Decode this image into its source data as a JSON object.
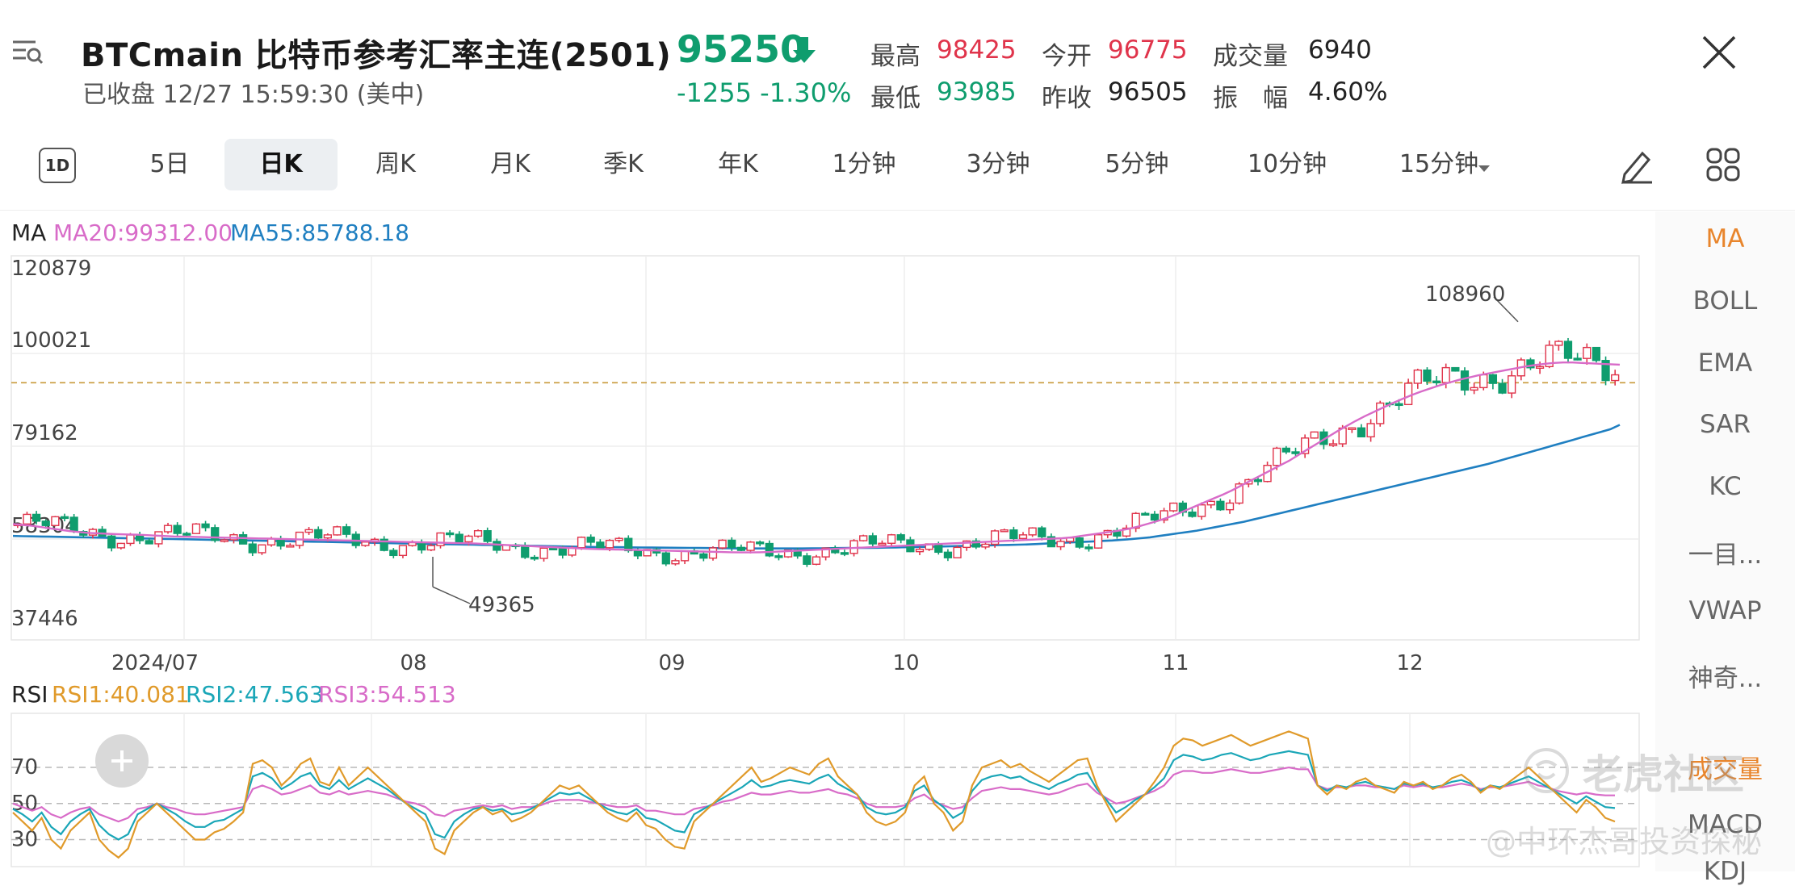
{
  "header": {
    "symbol_title": "BTCmain  比特币参考汇率主连(2501)",
    "market_status": "已收盘 12/27 15:59:30 (美中)",
    "last_price": "95250",
    "price_change": "-1255  -1.30%",
    "stats": {
      "high_label": "最高",
      "high_value": "98425",
      "open_label": "今开",
      "open_value": "96775",
      "volume_label": "成交量",
      "volume_value": "6940",
      "low_label": "最低",
      "low_value": "93985",
      "prev_close_label": "昨收",
      "prev_close_value": "96505",
      "amplitude_label": "振　幅",
      "amplitude_value": "4.60%"
    },
    "colors": {
      "up": "#e0344b",
      "down": "#0f9d6e"
    }
  },
  "tabs": {
    "icon_label": "1D",
    "items": [
      "5日",
      "日K",
      "周K",
      "月K",
      "季K",
      "年K",
      "1分钟",
      "3分钟",
      "5分钟",
      "10分钟",
      "15分钟"
    ],
    "active": "日K"
  },
  "side_panel": {
    "items": [
      "MA",
      "BOLL",
      "EMA",
      "SAR",
      "KC",
      "一目...",
      "VWAP",
      "神奇...",
      "成交量",
      "MACD",
      "KDJ"
    ],
    "active": "MA"
  },
  "main_legend": {
    "label": "MA",
    "ma20": "MA20:99312.00",
    "ma55": "MA55:85788.18",
    "ma20_color": "#d86bc8",
    "ma55_color": "#1f7fc1"
  },
  "rsi_legend": {
    "label": "RSI",
    "rsi1": "RSI1:40.081",
    "rsi2": "RSI2:47.563",
    "rsi3": "RSI3:54.513",
    "rsi1_color": "#e09a2a",
    "rsi2_color": "#1aa6b7",
    "rsi3_color": "#d86bc8"
  },
  "watermark": {
    "brand": "老虎社区",
    "author": "@中环杰哥投资探秘"
  },
  "chart_data": [
    {
      "type": "candlestick",
      "y_ticks": [
        "120879",
        "100021",
        "79162",
        "58304",
        "37446"
      ],
      "ylim": [
        37446,
        120879
      ],
      "x_ticks": [
        "2024/07",
        "08",
        "09",
        "10",
        "11",
        "12"
      ],
      "annotations": [
        {
          "text": "108960",
          "value": 108960
        },
        {
          "text": "49365",
          "value": 49365
        }
      ],
      "reference_price": 95250,
      "ma20": [
        63500,
        63300,
        63100,
        62800,
        62500,
        62200,
        61900,
        61700,
        61500,
        61400,
        61300,
        61200,
        61150,
        61100,
        61000,
        60900,
        60800,
        60700,
        60650,
        60600,
        60550,
        60500,
        60450,
        60400,
        60350,
        60300,
        60250,
        60200,
        60150,
        60100,
        60050,
        60000,
        59950,
        59900,
        59850,
        59800,
        59750,
        59700,
        59650,
        59600,
        59550,
        59500,
        59450,
        59400,
        59350,
        59300,
        59250,
        59200,
        59150,
        59100,
        59000,
        58900,
        58800,
        58700,
        58600,
        58500,
        58400,
        58300,
        58200,
        58100,
        58000,
        57900,
        57850,
        57800,
        57750,
        57700,
        57650,
        57600,
        57550,
        57500,
        57450,
        57400,
        57350,
        57300,
        57250,
        57200,
        57150,
        57100,
        57100,
        57150,
        57200,
        57300,
        57400,
        57500,
        57600,
        57700,
        57800,
        57900,
        58000,
        58100,
        58200,
        58300,
        58400,
        58500,
        58600,
        58700,
        58800,
        58900,
        59000,
        59100,
        59200,
        59300,
        59400,
        59500,
        59600,
        59700,
        59800,
        59900,
        60000,
        60100,
        60200,
        60300,
        60500,
        60800,
        61100,
        61400,
        61700,
        62000,
        62400,
        62900,
        63500,
        64100,
        64800,
        65600,
        66500,
        67400,
        68300,
        69200,
        70100,
        71100,
        72200,
        73300,
        74400,
        75500,
        76600,
        77700,
        79000,
        80300,
        81600,
        82900,
        84200,
        85400,
        86600,
        87700,
        88700,
        89700,
        90700,
        91600,
        92500,
        93300,
        94000,
        94700,
        95300,
        95900,
        96400,
        96900,
        97300,
        97700,
        98100,
        98500,
        98900,
        99200,
        99500,
        99700,
        99800,
        99800,
        99700,
        99600,
        99500,
        99400,
        99312
      ],
      "ma55": [
        60800,
        60760,
        60720,
        60680,
        60640,
        60600,
        60560,
        60520,
        60480,
        60440,
        60400,
        60360,
        60320,
        60280,
        60240,
        60200,
        60160,
        60120,
        60080,
        60040,
        60000,
        59960,
        59920,
        59880,
        59840,
        59800,
        59760,
        59720,
        59680,
        59640,
        59600,
        59560,
        59520,
        59480,
        59440,
        59400,
        59360,
        59320,
        59280,
        59240,
        59200,
        59160,
        59120,
        59080,
        59040,
        59000,
        58960,
        58920,
        58880,
        58840,
        58800,
        58760,
        58720,
        58680,
        58640,
        58600,
        58560,
        58520,
        58480,
        58440,
        58400,
        58360,
        58320,
        58300,
        58280,
        58260,
        58240,
        58220,
        58200,
        58180,
        58160,
        58140,
        58120,
        58100,
        58080,
        58060,
        58040,
        58020,
        58000,
        58000,
        58000,
        58000,
        58000,
        58000,
        58000,
        58020,
        58040,
        58060,
        58080,
        58100,
        58120,
        58140,
        58160,
        58200,
        58240,
        58280,
        58320,
        58360,
        58400,
        58450,
        58500,
        58550,
        58600,
        58650,
        58700,
        58750,
        58800,
        58850,
        58900,
        59000,
        59100,
        59200,
        59300,
        59400,
        59500,
        59600,
        59700,
        59800,
        59950,
        60100,
        60300,
        60500,
        60800,
        61100,
        61400,
        61700,
        62000,
        62400,
        62800,
        63200,
        63600,
        64000,
        64500,
        65000,
        65500,
        66000,
        66500,
        67000,
        67500,
        68000,
        68500,
        69000,
        69500,
        70000,
        70500,
        71000,
        71500,
        72000,
        72500,
        73000,
        73500,
        74000,
        74500,
        75000,
        75500,
        76000,
        76500,
        77000,
        77600,
        78200,
        78800,
        79400,
        80000,
        80600,
        81200,
        81800,
        82400,
        83000,
        83600,
        84200,
        84800,
        85788
      ]
    },
    {
      "type": "line",
      "name": "RSI",
      "y_ticks": [
        "70",
        "50",
        "30"
      ],
      "ylim": [
        15,
        100
      ],
      "series": [
        {
          "name": "RSI1:40.081",
          "values": [
            45,
            40,
            35,
            42,
            30,
            25,
            35,
            40,
            45,
            30,
            24,
            20,
            25,
            40,
            45,
            50,
            45,
            40,
            35,
            30,
            30,
            34,
            36,
            40,
            45,
            72,
            74,
            70,
            60,
            65,
            72,
            75,
            62,
            60,
            70,
            60,
            65,
            70,
            65,
            60,
            55,
            50,
            45,
            40,
            25,
            22,
            35,
            40,
            45,
            48,
            44,
            46,
            40,
            42,
            45,
            50,
            55,
            60,
            58,
            60,
            55,
            50,
            45,
            42,
            40,
            45,
            38,
            36,
            30,
            26,
            25,
            40,
            45,
            50,
            55,
            60,
            65,
            70,
            62,
            64,
            67,
            70,
            68,
            66,
            72,
            75,
            65,
            60,
            55,
            45,
            40,
            38,
            40,
            45,
            60,
            65,
            50,
            45,
            35,
            40,
            60,
            70,
            72,
            74,
            70,
            72,
            68,
            65,
            62,
            66,
            70,
            74,
            75,
            60,
            50,
            40,
            45,
            50,
            55,
            62,
            70,
            82,
            86,
            85,
            82,
            84,
            86,
            88,
            85,
            82,
            84,
            86,
            88,
            90,
            88,
            86,
            60,
            55,
            60,
            58,
            62,
            64,
            60,
            58,
            56,
            62,
            60,
            62,
            58,
            60,
            64,
            66,
            62,
            56,
            60,
            58,
            62,
            66,
            70,
            65,
            60,
            55,
            50,
            45,
            52,
            48,
            42,
            40
          ]
        },
        {
          "name": "RSI2:47.563",
          "values": [
            47,
            44,
            40,
            45,
            37,
            33,
            40,
            44,
            47,
            38,
            33,
            30,
            33,
            44,
            47,
            50,
            47,
            44,
            40,
            37,
            37,
            40,
            41,
            44,
            47,
            65,
            67,
            64,
            58,
            61,
            65,
            67,
            60,
            58,
            63,
            58,
            61,
            64,
            61,
            58,
            54,
            50,
            47,
            44,
            33,
            31,
            40,
            44,
            47,
            48,
            46,
            47,
            44,
            45,
            47,
            50,
            53,
            56,
            55,
            56,
            53,
            50,
            47,
            45,
            44,
            47,
            42,
            41,
            38,
            35,
            34,
            44,
            47,
            50,
            53,
            56,
            59,
            63,
            59,
            60,
            62,
            63,
            62,
            61,
            64,
            66,
            61,
            58,
            55,
            48,
            45,
            44,
            45,
            48,
            57,
            60,
            52,
            48,
            42,
            45,
            57,
            63,
            65,
            66,
            64,
            65,
            62,
            60,
            58,
            61,
            63,
            66,
            67,
            58,
            52,
            45,
            48,
            52,
            55,
            59,
            64,
            74,
            77,
            76,
            74,
            75,
            77,
            78,
            76,
            74,
            75,
            77,
            78,
            79,
            78,
            77,
            60,
            57,
            60,
            59,
            61,
            62,
            60,
            59,
            58,
            61,
            60,
            61,
            59,
            60,
            62,
            63,
            61,
            57,
            60,
            59,
            61,
            63,
            65,
            62,
            59,
            56,
            53,
            50,
            54,
            51,
            48,
            47.5
          ]
        },
        {
          "name": "RSI3:54.513",
          "values": [
            50,
            48,
            46,
            48,
            44,
            42,
            45,
            47,
            48,
            44,
            42,
            40,
            42,
            47,
            48,
            50,
            48,
            47,
            45,
            44,
            44,
            45,
            46,
            47,
            48,
            58,
            60,
            58,
            55,
            56,
            58,
            60,
            56,
            55,
            57,
            55,
            56,
            57,
            56,
            55,
            53,
            51,
            50,
            48,
            44,
            43,
            46,
            47,
            48,
            49,
            48,
            49,
            47,
            48,
            48,
            49,
            51,
            52,
            52,
            52,
            51,
            50,
            49,
            48,
            48,
            49,
            46,
            46,
            45,
            44,
            44,
            47,
            48,
            49,
            51,
            52,
            54,
            56,
            55,
            55,
            56,
            57,
            56,
            56,
            57,
            58,
            56,
            55,
            53,
            50,
            48,
            48,
            48,
            49,
            53,
            55,
            51,
            49,
            47,
            48,
            53,
            57,
            58,
            59,
            58,
            58,
            57,
            56,
            55,
            56,
            58,
            60,
            61,
            56,
            53,
            50,
            51,
            53,
            55,
            57,
            60,
            66,
            68,
            68,
            67,
            67,
            68,
            69,
            68,
            67,
            67,
            68,
            69,
            70,
            69,
            69,
            60,
            58,
            59,
            59,
            60,
            60,
            59,
            59,
            58,
            60,
            59,
            60,
            59,
            59,
            60,
            61,
            60,
            58,
            59,
            59,
            60,
            61,
            62,
            60,
            59,
            57,
            56,
            55,
            56,
            55,
            54.5,
            54.5
          ]
        }
      ]
    }
  ]
}
